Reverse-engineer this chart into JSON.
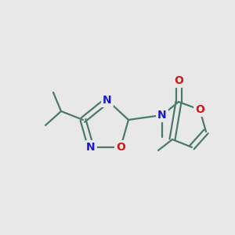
{
  "background_color": "#e8e8e8",
  "bond_color": "#4a7a6a",
  "N_color": "#1a1acc",
  "O_color": "#cc1a1a",
  "line_width": 1.6,
  "font_size_atom": 10,
  "fig_size": [
    3.0,
    3.0
  ],
  "dpi": 100,
  "xlim": [
    0,
    300
  ],
  "ylim": [
    0,
    300
  ]
}
